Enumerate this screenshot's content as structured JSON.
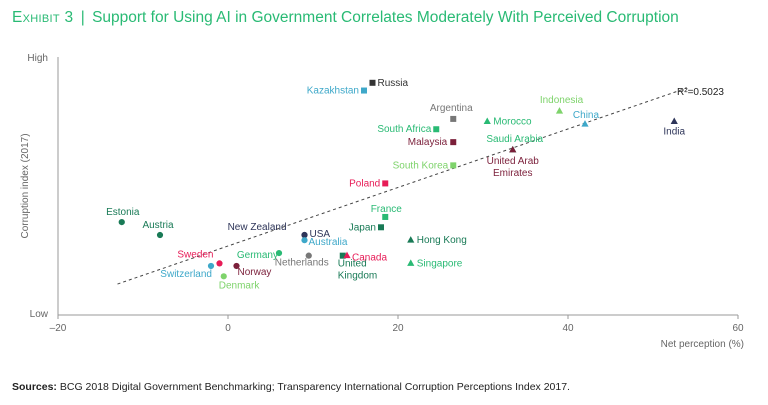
{
  "header": {
    "exhibit": "Exhibit 3",
    "separator": "|",
    "title": "Support for Using AI in Government Correlates Moderately With Perceived Corruption"
  },
  "footer": {
    "sources_label": "Sources:",
    "sources_text": "BCG 2018 Digital Government Benchmarking; Transparency International Corruption Perceptions Index 2017."
  },
  "colors": {
    "green": "#29ba74",
    "dark_green": "#197a56",
    "teal": "#3ea8c9",
    "light_green": "#7ed36b",
    "red": "#e71c57",
    "maroon": "#7b1f3a",
    "grey": "#777777",
    "navy": "#2e3559",
    "dark": "#333333"
  },
  "chart_data": {
    "type": "scatter",
    "title": "Support for Using AI in Government Correlates Moderately With Perceived Corruption",
    "xlabel": "Net perception (%)",
    "ylabel": "Corruption index (2017)",
    "xlim": [
      -20,
      60
    ],
    "ylim": [
      0,
      100
    ],
    "xticks": [
      -20,
      0,
      20,
      40,
      60
    ],
    "xtick_labels": [
      "–20",
      "0",
      "20",
      "40",
      "60"
    ],
    "y_low_label": "Low",
    "y_high_label": "High",
    "trendline": {
      "label": "R²=0.5023",
      "from": [
        -13,
        12
      ],
      "to": [
        54,
        88
      ]
    },
    "points": [
      {
        "name": "Russia",
        "x": 17,
        "y": 90,
        "shape": "square",
        "color": "#333333"
      },
      {
        "name": "Kazakhstan",
        "x": 16,
        "y": 87,
        "shape": "square",
        "color": "#3ea8c9"
      },
      {
        "name": "Argentina",
        "x": 26.5,
        "y": 76,
        "shape": "square",
        "color": "#777777"
      },
      {
        "name": "Indonesia",
        "x": 39,
        "y": 79,
        "shape": "triangle",
        "color": "#7ed36b"
      },
      {
        "name": "China",
        "x": 42,
        "y": 74,
        "shape": "triangle",
        "color": "#3ea8c9"
      },
      {
        "name": "India",
        "x": 52.5,
        "y": 75,
        "shape": "triangle",
        "color": "#2e3559"
      },
      {
        "name": "Morocco",
        "x": 30.5,
        "y": 75,
        "shape": "triangle",
        "color": "#29ba74"
      },
      {
        "name": "South Africa",
        "x": 24.5,
        "y": 72,
        "shape": "square",
        "color": "#29ba74"
      },
      {
        "name": "Malaysia",
        "x": 26.5,
        "y": 67,
        "shape": "square",
        "color": "#7b1f3a"
      },
      {
        "name": "Saudi Arabia",
        "x": 33.5,
        "y": 64,
        "shape": "triangle",
        "color": "#29ba74"
      },
      {
        "name": "United Arab Emirates",
        "x": 33.5,
        "y": 64,
        "shape": "triangle",
        "color": "#7b1f3a"
      },
      {
        "name": "South Korea",
        "x": 26.5,
        "y": 58,
        "shape": "square",
        "color": "#7ed36b"
      },
      {
        "name": "Poland",
        "x": 18.5,
        "y": 51,
        "shape": "square",
        "color": "#e71c57"
      },
      {
        "name": "France",
        "x": 18.5,
        "y": 38,
        "shape": "square",
        "color": "#29ba74"
      },
      {
        "name": "Japan",
        "x": 18,
        "y": 34,
        "shape": "square",
        "color": "#197a56"
      },
      {
        "name": "Hong Kong",
        "x": 21.5,
        "y": 29,
        "shape": "triangle",
        "color": "#197a56"
      },
      {
        "name": "Singapore",
        "x": 21.5,
        "y": 20,
        "shape": "triangle",
        "color": "#29ba74"
      },
      {
        "name": "Estonia",
        "x": -12.5,
        "y": 36,
        "shape": "circle",
        "color": "#197a56"
      },
      {
        "name": "Austria",
        "x": -8,
        "y": 31,
        "shape": "circle",
        "color": "#197a56"
      },
      {
        "name": "New Zealand",
        "x": 9,
        "y": 31,
        "shape": "circle",
        "color": "#2e3559"
      },
      {
        "name": "USA",
        "x": 9,
        "y": 31,
        "shape": "circle",
        "color": "#2e3559"
      },
      {
        "name": "Australia",
        "x": 9,
        "y": 29,
        "shape": "circle",
        "color": "#3ea8c9"
      },
      {
        "name": "Sweden",
        "x": -1,
        "y": 20,
        "shape": "circle",
        "color": "#e71c57"
      },
      {
        "name": "Norway",
        "x": 1,
        "y": 19,
        "shape": "circle",
        "color": "#7b1f3a"
      },
      {
        "name": "Switzerland",
        "x": -2,
        "y": 19,
        "shape": "circle",
        "color": "#3ea8c9"
      },
      {
        "name": "Denmark",
        "x": -0.5,
        "y": 15,
        "shape": "circle",
        "color": "#7ed36b"
      },
      {
        "name": "Germany",
        "x": 6,
        "y": 24,
        "shape": "circle",
        "color": "#29ba74"
      },
      {
        "name": "Netherlands",
        "x": 9.5,
        "y": 23,
        "shape": "circle",
        "color": "#777777"
      },
      {
        "name": "United Kingdom",
        "x": 13.5,
        "y": 23,
        "shape": "square",
        "color": "#197a56"
      },
      {
        "name": "Canada",
        "x": 14,
        "y": 23,
        "shape": "triangle",
        "color": "#e71c57"
      }
    ]
  }
}
